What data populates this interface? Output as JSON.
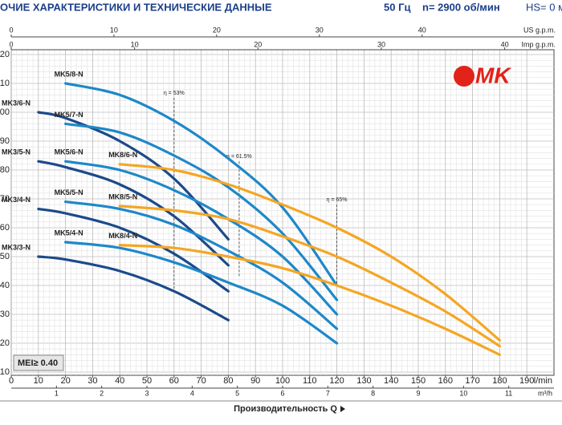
{
  "header": {
    "title": "ОЧИЕ ХАРАКТЕРИСТИКИ И ТЕХНИЧЕСКИЕ ДАННЫЕ",
    "frequency": "50 Гц",
    "speed": "n= 2900 об/мин",
    "suction": "HS= 0 м"
  },
  "logo": "MK",
  "chart_data": {
    "type": "line",
    "x_label": "Производительность Q",
    "x_unit": "l/min",
    "xlim": [
      0,
      200
    ],
    "xticks": [
      0,
      10,
      20,
      30,
      40,
      50,
      60,
      70,
      80,
      90,
      100,
      110,
      120,
      130,
      140,
      150,
      160,
      170,
      180,
      190
    ],
    "ylim": [
      10,
      120
    ],
    "yticks": [
      10,
      20,
      30,
      40,
      50,
      60,
      70,
      80,
      90,
      100,
      110,
      120
    ],
    "grid": true,
    "m3h_unit": "m³/h",
    "m3h_ticks": [
      {
        "value": 16.67,
        "label": "1"
      },
      {
        "value": 33.33,
        "label": "2"
      },
      {
        "value": 50,
        "label": "3"
      },
      {
        "value": 66.67,
        "label": "4"
      },
      {
        "value": 83.33,
        "label": "5"
      },
      {
        "value": 100,
        "label": "6"
      },
      {
        "value": 116.67,
        "label": "7"
      },
      {
        "value": 133.33,
        "label": "8"
      },
      {
        "value": 150,
        "label": "9"
      },
      {
        "value": 166.67,
        "label": "10"
      },
      {
        "value": 183.33,
        "label": "11"
      }
    ],
    "us_unit": "US g.p.m.",
    "us_ticks": [
      {
        "value": 0,
        "label": "0"
      },
      {
        "value": 37.85,
        "label": "10"
      },
      {
        "value": 75.7,
        "label": "20"
      },
      {
        "value": 113.55,
        "label": "30"
      },
      {
        "value": 151.4,
        "label": "40"
      }
    ],
    "imp_unit": "Imp g.p.m.",
    "imp_ticks": [
      {
        "value": 0,
        "label": "0"
      },
      {
        "value": 45.46,
        "label": "10"
      },
      {
        "value": 90.92,
        "label": "20"
      },
      {
        "value": 136.38,
        "label": "30"
      },
      {
        "value": 181.84,
        "label": "40"
      }
    ],
    "mei_label": "MEI≥ 0.40",
    "efficiency_lines": [
      {
        "label": "η = 53%",
        "x": 60,
        "y_top": 105,
        "y_bottom": 38
      },
      {
        "label": "η = 61.5%",
        "x": 84,
        "y_top": 83,
        "y_bottom": 43
      },
      {
        "label": "η = 65%",
        "x": 120,
        "y_top": 68,
        "y_bottom": 40
      }
    ],
    "series": [
      {
        "name": "MK3/3-N",
        "color": "#1b4a8a",
        "x": [
          10,
          20,
          40,
          60,
          80
        ],
        "values": [
          50,
          49,
          45,
          38,
          28
        ]
      },
      {
        "name": "MK3/4-N",
        "color": "#1b4a8a",
        "x": [
          10,
          20,
          40,
          60,
          80
        ],
        "values": [
          66.5,
          65,
          60,
          51,
          38
        ]
      },
      {
        "name": "MK3/5-N",
        "color": "#1b4a8a",
        "x": [
          10,
          20,
          40,
          60,
          80
        ],
        "values": [
          83,
          81,
          75,
          64,
          47
        ]
      },
      {
        "name": "MK3/6-N",
        "color": "#1b4a8a",
        "x": [
          10,
          20,
          40,
          60,
          80
        ],
        "values": [
          100,
          98,
          90,
          77,
          56
        ]
      },
      {
        "name": "MK5/4-N",
        "color": "#1e88c9",
        "x": [
          20,
          40,
          60,
          80,
          100,
          120
        ],
        "values": [
          55,
          53,
          48,
          41,
          33,
          20
        ]
      },
      {
        "name": "MK5/5-N",
        "color": "#1e88c9",
        "x": [
          20,
          40,
          60,
          80,
          100,
          120
        ],
        "values": [
          69,
          66.5,
          61,
          52,
          41,
          25
        ]
      },
      {
        "name": "MK5/6-N",
        "color": "#1e88c9",
        "x": [
          20,
          40,
          60,
          80,
          100,
          120
        ],
        "values": [
          83,
          80,
          73,
          63,
          50,
          30
        ]
      },
      {
        "name": "MK5/7-N",
        "color": "#1e88c9",
        "x": [
          20,
          40,
          60,
          80,
          100,
          120
        ],
        "values": [
          96,
          93,
          85,
          74,
          58,
          35
        ]
      },
      {
        "name": "MK5/8-N",
        "color": "#1e88c9",
        "x": [
          20,
          40,
          60,
          80,
          100,
          120
        ],
        "values": [
          110,
          106,
          97,
          84,
          67,
          40
        ]
      },
      {
        "name": "MK8/4-N",
        "color": "#f5a623",
        "x": [
          40,
          60,
          80,
          100,
          120,
          140,
          160,
          180
        ],
        "values": [
          54,
          53,
          50,
          46,
          40,
          33,
          25,
          16
        ]
      },
      {
        "name": "MK8/5-N",
        "color": "#f5a623",
        "x": [
          40,
          60,
          80,
          100,
          120,
          140,
          160,
          180
        ],
        "values": [
          67.5,
          66,
          63,
          57,
          50,
          41,
          31,
          19
        ]
      },
      {
        "name": "MK8/6-N",
        "color": "#f5a623",
        "x": [
          40,
          60,
          80,
          100,
          120,
          140,
          160,
          180
        ],
        "values": [
          82,
          80,
          75,
          68,
          60,
          50,
          37,
          21
        ]
      }
    ]
  }
}
